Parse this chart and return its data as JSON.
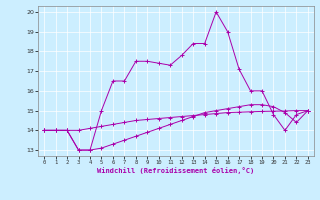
{
  "xlabel": "Windchill (Refroidissement éolien,°C)",
  "bg_color": "#cceeff",
  "line_color": "#aa00aa",
  "xlim": [
    -0.5,
    23.5
  ],
  "ylim": [
    12.7,
    20.3
  ],
  "yticks": [
    13,
    14,
    15,
    16,
    17,
    18,
    19,
    20
  ],
  "xticks": [
    0,
    1,
    2,
    3,
    4,
    5,
    6,
    7,
    8,
    9,
    10,
    11,
    12,
    13,
    14,
    15,
    16,
    17,
    18,
    19,
    20,
    21,
    22,
    23
  ],
  "series1": [
    14.0,
    14.0,
    14.0,
    13.0,
    13.0,
    15.0,
    16.5,
    16.5,
    17.5,
    17.5,
    17.4,
    17.3,
    17.8,
    18.4,
    18.4,
    20.0,
    19.0,
    17.1,
    16.0,
    16.0,
    14.8,
    14.0,
    14.8,
    15.0
  ],
  "series2": [
    14.0,
    14.0,
    14.0,
    14.0,
    14.1,
    14.2,
    14.3,
    14.4,
    14.5,
    14.55,
    14.6,
    14.65,
    14.7,
    14.75,
    14.8,
    14.85,
    14.9,
    14.92,
    14.94,
    14.96,
    14.97,
    14.98,
    15.0,
    15.0
  ],
  "series3": [
    14.0,
    14.0,
    14.0,
    13.0,
    13.0,
    13.1,
    13.3,
    13.5,
    13.7,
    13.9,
    14.1,
    14.3,
    14.5,
    14.7,
    14.9,
    15.0,
    15.1,
    15.2,
    15.3,
    15.3,
    15.2,
    14.9,
    14.4,
    15.0
  ]
}
